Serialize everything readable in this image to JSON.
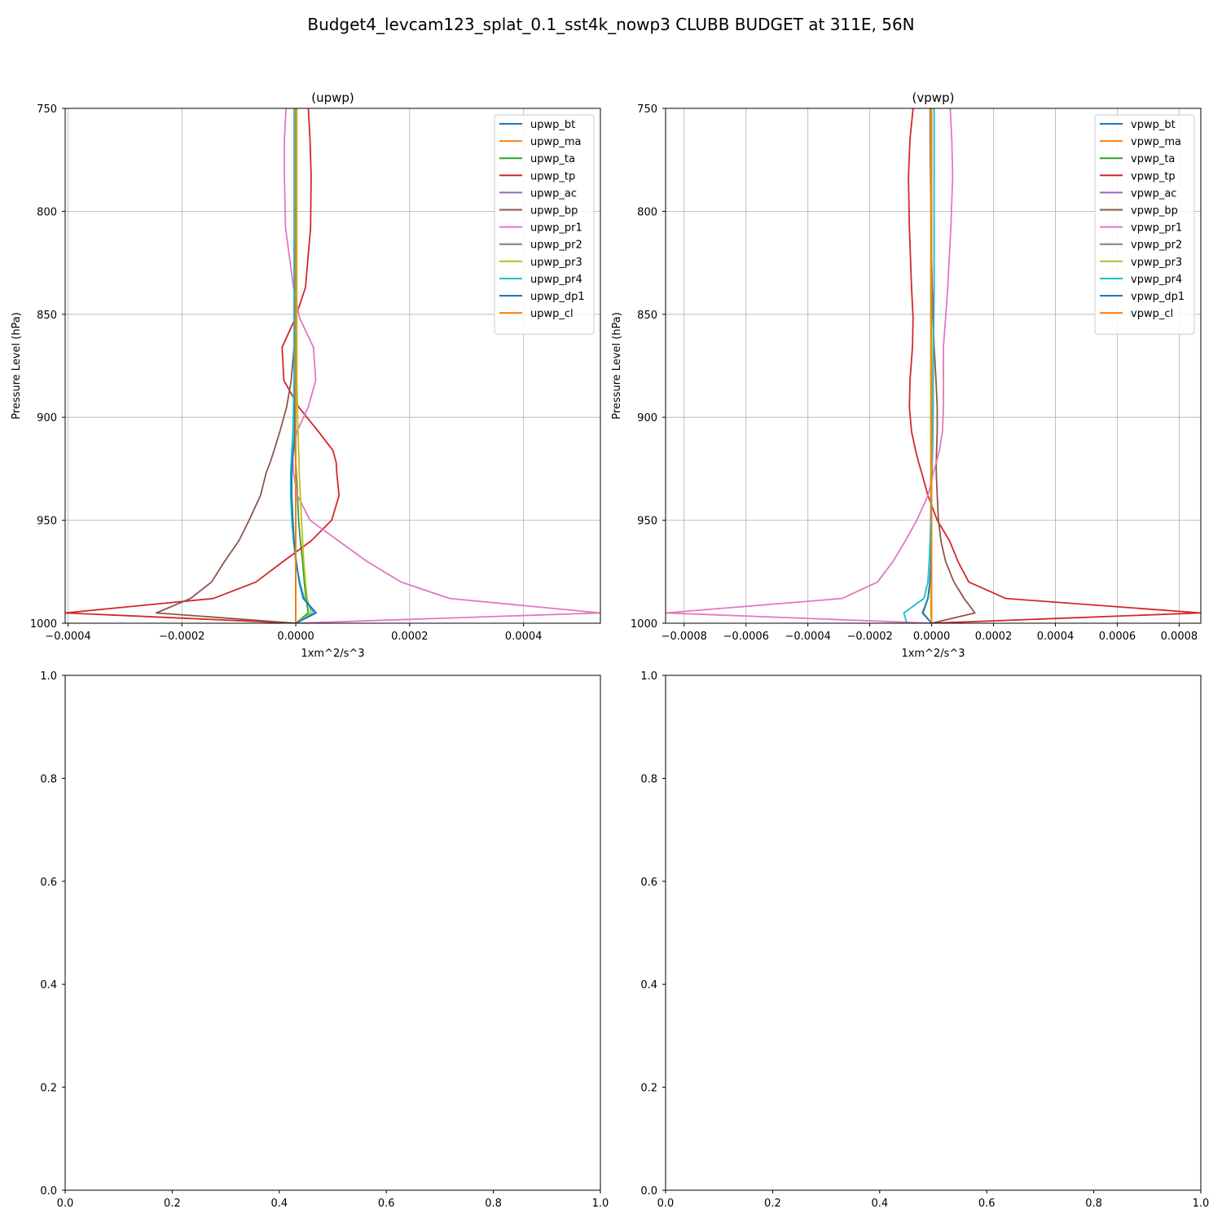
{
  "title": "Budget4_levcam123_splat_0.1_sst4k_nowp3 CLUBB BUDGET at 311E, 56N",
  "colors": {
    "bt": "#1f77b4",
    "ma": "#ff7f0e",
    "ta": "#2ca02c",
    "tp": "#d62728",
    "ac": "#9467bd",
    "bp": "#8c564b",
    "pr1": "#e377c2",
    "pr2": "#7f7f7f",
    "pr3": "#bcbd22",
    "pr4": "#17becf",
    "dp1": "#1f77b4",
    "cl": "#ff7f0e"
  },
  "chart_data": [
    {
      "type": "line",
      "title": "(upwp)",
      "xlabel": "1xm^2/s^3",
      "ylabel": "Pressure Level (hPa)",
      "xlim": [
        -0.000405,
        0.000535
      ],
      "ylim": [
        1000,
        750
      ],
      "xticks": [
        -0.0004,
        -0.0002,
        0.0,
        0.0002,
        0.0004
      ],
      "xtick_labels": [
        "−0.0004",
        "−0.0002",
        "0.0000",
        "0.0002",
        "0.0004"
      ],
      "yticks": [
        750,
        800,
        850,
        900,
        950,
        1000
      ],
      "ytick_labels": [
        "750",
        "800",
        "850",
        "900",
        "950",
        "1000"
      ],
      "grid": true,
      "legend": "upper right",
      "y": [
        750,
        765,
        783,
        808,
        837,
        852,
        866,
        882,
        895,
        907,
        916,
        922,
        927,
        938,
        950,
        960,
        970,
        980,
        988,
        995,
        1000
      ],
      "series": [
        {
          "name": "upwp_bt",
          "key": "bt",
          "values": [
            0,
            0,
            0,
            0,
            0,
            0,
            0,
            0,
            0,
            0,
            0,
            0,
            0,
            0,
            0,
            0,
            0,
            0,
            0,
            0,
            0
          ]
        },
        {
          "name": "upwp_ma",
          "key": "ma",
          "values": [
            0,
            0,
            0,
            0,
            0,
            0,
            0,
            0,
            0,
            0,
            0,
            0,
            0,
            0,
            0,
            0,
            0,
            0,
            0,
            0,
            0
          ]
        },
        {
          "name": "upwp_ta",
          "key": "ta",
          "values": [
            0,
            0,
            0,
            0,
            -2e-06,
            -2e-06,
            -2e-06,
            -2e-06,
            -2e-06,
            -2e-06,
            -1e-06,
            0,
            1e-06,
            3e-06,
            5e-06,
            8e-06,
            1.2e-05,
            1.5e-05,
            1.8e-05,
            2.2e-05,
            0
          ]
        },
        {
          "name": "upwp_tp",
          "key": "tp",
          "values": [
            2.2e-05,
            2.5e-05,
            2.7e-05,
            2.6e-05,
            1.7e-05,
            -1e-06,
            -2.4e-05,
            -2.1e-05,
            5e-06,
            4e-05,
            6.5e-05,
            7.1e-05,
            7.2e-05,
            7.6e-05,
            6.3e-05,
            2.7e-05,
            -2.2e-05,
            -7e-05,
            -0.000145,
            -0.000405,
            0
          ]
        },
        {
          "name": "upwp_ac",
          "key": "ac",
          "values": [
            0,
            0,
            0,
            0,
            0,
            0,
            0,
            0,
            0,
            0,
            0,
            0,
            0,
            0,
            0,
            0,
            0,
            0,
            0,
            0,
            0
          ]
        },
        {
          "name": "upwp_bp",
          "key": "bp",
          "values": [
            0,
            0,
            0,
            0,
            -2e-06,
            -2e-06,
            -3e-06,
            -8e-06,
            -1.6e-05,
            -2.8e-05,
            -3.8e-05,
            -4.5e-05,
            -5.2e-05,
            -6.2e-05,
            -8.2e-05,
            -0.0001,
            -0.000125,
            -0.000148,
            -0.000185,
            -0.000245,
            0
          ]
        },
        {
          "name": "upwp_pr1",
          "key": "pr1",
          "values": [
            -1.7e-05,
            -2e-05,
            -2e-05,
            -1.8e-05,
            -4e-06,
            7e-06,
            3.1e-05,
            3.5e-05,
            2.2e-05,
            2e-06,
            -5e-06,
            -5e-06,
            -4e-06,
            3e-06,
            2.5e-05,
            7.5e-05,
            0.000125,
            0.000185,
            0.00027,
            0.000535,
            0
          ]
        },
        {
          "name": "upwp_pr2",
          "key": "pr2",
          "values": [
            0,
            0,
            0,
            0,
            0,
            0,
            0,
            0,
            0,
            0,
            0,
            0,
            0,
            0,
            0,
            0,
            0,
            0,
            0,
            0,
            0
          ]
        },
        {
          "name": "upwp_pr3",
          "key": "pr3",
          "values": [
            2e-06,
            2e-06,
            2e-06,
            2e-06,
            2e-06,
            2e-06,
            2e-06,
            2e-06,
            3e-06,
            4e-06,
            5e-06,
            6e-06,
            6e-06,
            8e-06,
            1e-05,
            1.2e-05,
            1.4e-05,
            1.7e-05,
            2e-05,
            2.7e-05,
            0
          ]
        },
        {
          "name": "upwp_pr4",
          "key": "pr4",
          "values": [
            -3e-06,
            -3e-06,
            -3e-06,
            -3e-06,
            -3e-06,
            -3e-06,
            -3e-06,
            -3e-06,
            -4e-06,
            -5e-06,
            -7e-06,
            -8e-06,
            -9e-06,
            -9e-06,
            -7e-06,
            -4e-06,
            0,
            7e-06,
            1.5e-05,
            3.2e-05,
            0
          ]
        },
        {
          "name": "upwp_dp1",
          "key": "dp1",
          "values": [
            0,
            0,
            0,
            0,
            0,
            0,
            0,
            0,
            -1e-06,
            -2e-06,
            -4e-06,
            -6e-06,
            -7e-06,
            -7e-06,
            -5e-06,
            -3e-06,
            1e-06,
            6e-06,
            1.3e-05,
            3.6e-05,
            0
          ]
        },
        {
          "name": "upwp_cl",
          "key": "cl",
          "values": [
            0,
            0,
            0,
            0,
            0,
            0,
            0,
            0,
            0,
            0,
            0,
            0,
            0,
            0,
            0,
            0,
            0,
            0,
            0,
            0,
            0
          ]
        }
      ]
    },
    {
      "type": "line",
      "title": "(vpwp)",
      "xlabel": "1xm^2/s^3",
      "ylabel": "Pressure Level (hPa)",
      "xlim": [
        -0.00086,
        0.00087
      ],
      "ylim": [
        1000,
        750
      ],
      "xticks": [
        -0.0008,
        -0.0006,
        -0.0004,
        -0.0002,
        0.0,
        0.0002,
        0.0004,
        0.0006,
        0.0008
      ],
      "xtick_labels": [
        "−0.0008",
        "−0.0006",
        "−0.0004",
        "−0.0002",
        "0.0000",
        "0.0002",
        "0.0004",
        "0.0006",
        "0.0008"
      ],
      "yticks": [
        750,
        800,
        850,
        900,
        950,
        1000
      ],
      "ytick_labels": [
        "750",
        "800",
        "850",
        "900",
        "950",
        "1000"
      ],
      "grid": true,
      "legend": "upper right",
      "y": [
        750,
        765,
        783,
        808,
        837,
        852,
        866,
        882,
        895,
        907,
        916,
        922,
        927,
        938,
        950,
        960,
        970,
        980,
        988,
        995,
        1000
      ],
      "series": [
        {
          "name": "vpwp_bt",
          "key": "bt",
          "values": [
            0,
            0,
            0,
            0,
            0,
            0,
            0,
            0,
            0,
            0,
            0,
            0,
            0,
            0,
            0,
            0,
            0,
            0,
            0,
            0,
            0
          ]
        },
        {
          "name": "vpwp_ma",
          "key": "ma",
          "values": [
            0,
            0,
            0,
            0,
            0,
            0,
            0,
            0,
            0,
            0,
            0,
            0,
            0,
            0,
            0,
            0,
            0,
            0,
            0,
            0,
            0
          ]
        },
        {
          "name": "vpwp_ta",
          "key": "ta",
          "values": [
            0,
            0,
            0,
            0,
            0,
            0,
            0,
            0,
            0,
            0,
            0,
            0,
            0,
            0,
            0,
            0,
            -2e-06,
            -5e-06,
            -1.2e-05,
            -2.8e-05,
            0
          ]
        },
        {
          "name": "vpwp_tp",
          "key": "tp",
          "values": [
            -6e-05,
            -7e-05,
            -7.5e-05,
            -7.2e-05,
            -6.5e-05,
            -6e-05,
            -6.2e-05,
            -7e-05,
            -7.2e-05,
            -6.5e-05,
            -5.2e-05,
            -4.2e-05,
            -3.2e-05,
            -1.2e-05,
            1.8e-05,
            5.8e-05,
            8.5e-05,
            0.00012,
            0.00024,
            0.00087,
            0
          ]
        },
        {
          "name": "vpwp_ac",
          "key": "ac",
          "values": [
            0,
            0,
            0,
            0,
            0,
            0,
            0,
            0,
            0,
            0,
            0,
            0,
            0,
            0,
            0,
            0,
            0,
            0,
            0,
            0,
            0
          ]
        },
        {
          "name": "vpwp_bp",
          "key": "bp",
          "values": [
            -5e-06,
            -5e-06,
            -4e-06,
            -2e-06,
            2e-06,
            5e-06,
            8e-06,
            1.4e-05,
            1.8e-05,
            1.8e-05,
            1.6e-05,
            1.5e-05,
            1.5e-05,
            1.8e-05,
            2.2e-05,
            3e-05,
            4.5e-05,
            7.2e-05,
            0.000105,
            0.00014,
            0
          ]
        },
        {
          "name": "vpwp_pr1",
          "key": "pr1",
          "values": [
            6e-05,
            6.5e-05,
            6.8e-05,
            6.2e-05,
            5.2e-05,
            4.5e-05,
            3.8e-05,
            3.8e-05,
            3.8e-05,
            3.5e-05,
            2.5e-05,
            1.5e-05,
            5e-06,
            -1.2e-05,
            -4.8e-05,
            -8.5e-05,
            -0.000125,
            -0.000175,
            -0.00029,
            -0.00086,
            0
          ]
        },
        {
          "name": "vpwp_pr2",
          "key": "pr2",
          "values": [
            0,
            0,
            0,
            0,
            0,
            0,
            0,
            0,
            0,
            0,
            0,
            0,
            0,
            0,
            0,
            0,
            0,
            0,
            0,
            0,
            0
          ]
        },
        {
          "name": "vpwp_pr3",
          "key": "pr3",
          "values": [
            -3e-06,
            -3e-06,
            -3e-06,
            -3e-06,
            -3e-06,
            -3e-06,
            -3e-06,
            -3e-06,
            -3e-06,
            -3e-06,
            -3e-06,
            -3e-06,
            -3e-06,
            -3e-06,
            -3e-06,
            -3e-06,
            -3e-06,
            -3e-06,
            -3e-06,
            -3e-06,
            0
          ]
        },
        {
          "name": "vpwp_pr4",
          "key": "pr4",
          "values": [
            8e-06,
            8e-06,
            8e-06,
            8e-06,
            8e-06,
            7e-06,
            6e-06,
            5e-06,
            5e-06,
            4e-06,
            3e-06,
            2e-06,
            1e-06,
            -1e-06,
            -3e-06,
            -5e-06,
            -8e-06,
            -1.2e-05,
            -2.5e-05,
            -9e-05,
            -8e-05
          ]
        },
        {
          "name": "vpwp_dp1",
          "key": "dp1",
          "values": [
            0,
            0,
            0,
            0,
            0,
            0,
            0,
            0,
            0,
            0,
            0,
            0,
            0,
            0,
            0,
            0,
            -2e-06,
            -6e-06,
            -1.2e-05,
            -3e-05,
            0
          ]
        },
        {
          "name": "vpwp_cl",
          "key": "cl",
          "values": [
            0,
            0,
            0,
            0,
            0,
            0,
            0,
            0,
            0,
            0,
            0,
            0,
            0,
            0,
            0,
            0,
            0,
            0,
            0,
            0,
            0
          ]
        }
      ]
    },
    {
      "type": "line",
      "title": "",
      "xlim": [
        0,
        1
      ],
      "ylim": [
        0,
        1
      ],
      "xticks": [
        0.0,
        0.2,
        0.4,
        0.6,
        0.8,
        1.0
      ],
      "xtick_labels": [
        "0.0",
        "0.2",
        "0.4",
        "0.6",
        "0.8",
        "1.0"
      ],
      "yticks": [
        0.0,
        0.2,
        0.4,
        0.6,
        0.8,
        1.0
      ],
      "ytick_labels": [
        "0.0",
        "0.2",
        "0.4",
        "0.6",
        "0.8",
        "1.0"
      ],
      "grid": false,
      "series": []
    },
    {
      "type": "line",
      "title": "",
      "xlim": [
        0,
        1
      ],
      "ylim": [
        0,
        1
      ],
      "xticks": [
        0.0,
        0.2,
        0.4,
        0.6,
        0.8,
        1.0
      ],
      "xtick_labels": [
        "0.0",
        "0.2",
        "0.4",
        "0.6",
        "0.8",
        "1.0"
      ],
      "yticks": [
        0.0,
        0.2,
        0.4,
        0.6,
        0.8,
        1.0
      ],
      "ytick_labels": [
        "0.0",
        "0.2",
        "0.4",
        "0.6",
        "0.8",
        "1.0"
      ],
      "grid": false,
      "series": []
    }
  ]
}
